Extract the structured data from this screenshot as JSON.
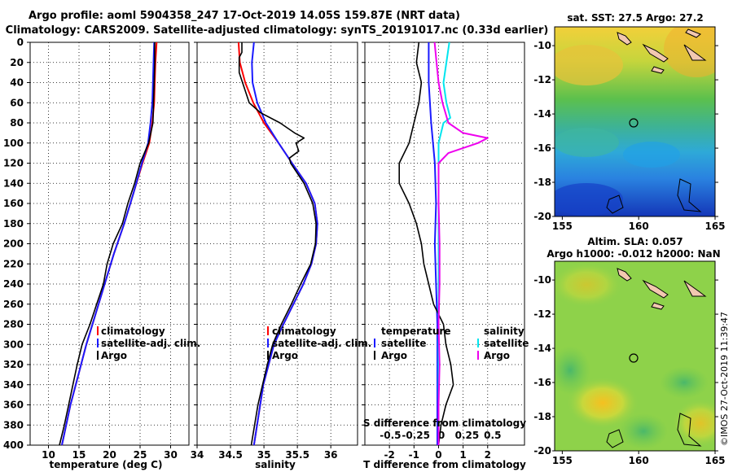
{
  "title_line1": "Argo profile: aoml 5904358_247 17-Oct-2019 14.05S 159.87E (NRT data)",
  "title_line2": "Climatology: CARS2009. Satellite-adjusted climatology: synTS_20191017.nc (0.33d earlier)",
  "credit": "©IMOS 27-Oct-2019 11:39:47",
  "colors": {
    "climatology": "#ff0000",
    "satellite": "#1a1aff",
    "argo": "#000000",
    "sal_satellite": "#00e5ee",
    "sal_clim": "#ee00ee"
  },
  "chart_data": [
    {
      "id": "temperature",
      "type": "line",
      "xlabel": "temperature (deg C)",
      "ylabel": "",
      "xlim": [
        7,
        33
      ],
      "ylim": [
        400,
        0
      ],
      "xticks": [
        "10",
        "15",
        "20",
        "25",
        "30"
      ],
      "yticks": [
        "0",
        "20",
        "40",
        "60",
        "80",
        "100",
        "120",
        "140",
        "160",
        "180",
        "200",
        "220",
        "240",
        "260",
        "280",
        "300",
        "320",
        "340",
        "360",
        "380",
        "400"
      ],
      "grid": true,
      "legend": [
        "climatology",
        "satellite-adj. clim.",
        "Argo"
      ],
      "legend_position": "lower-right",
      "series": [
        {
          "name": "climatology",
          "color": "#ff0000",
          "depth": [
            0,
            20,
            40,
            60,
            80,
            100,
            120,
            150,
            180,
            210,
            240,
            270,
            300,
            330,
            360,
            400
          ],
          "values": [
            27.7,
            27.5,
            27.4,
            27.3,
            27.0,
            26.5,
            25.4,
            23.9,
            22.4,
            20.7,
            19.2,
            17.7,
            16.2,
            14.9,
            13.6,
            12.2
          ]
        },
        {
          "name": "satellite-adj. clim.",
          "color": "#1a1aff",
          "depth": [
            0,
            20,
            40,
            60,
            80,
            100,
            120,
            150,
            180,
            210,
            240,
            270,
            300,
            330,
            360,
            400
          ],
          "values": [
            27.3,
            27.2,
            27.1,
            27.0,
            26.7,
            26.3,
            25.3,
            23.9,
            22.4,
            20.7,
            19.2,
            17.7,
            16.2,
            14.9,
            13.6,
            12.2
          ]
        },
        {
          "name": "Argo",
          "color": "#000000",
          "depth": [
            0,
            20,
            40,
            60,
            80,
            100,
            120,
            140,
            160,
            180,
            200,
            220,
            240,
            260,
            280,
            300,
            320,
            340,
            360,
            380,
            400
          ],
          "values": [
            27.4,
            27.4,
            27.3,
            27.2,
            27.1,
            26.4,
            25.0,
            24.1,
            23.0,
            22.1,
            20.6,
            19.6,
            19.0,
            17.9,
            16.8,
            15.5,
            14.7,
            14.0,
            13.3,
            12.6,
            11.8
          ]
        }
      ]
    },
    {
      "id": "salinity",
      "type": "line",
      "xlabel": "salinity",
      "ylabel": "",
      "xlim": [
        34,
        36.4
      ],
      "ylim": [
        400,
        0
      ],
      "xticks": [
        "34",
        "34.5",
        "35",
        "35.5",
        "36"
      ],
      "grid": true,
      "legend": [
        "climatology",
        "satellite-adj. clim.",
        "Argo"
      ],
      "legend_position": "lower-right",
      "series": [
        {
          "name": "climatology",
          "color": "#ff0000",
          "depth": [
            0,
            20,
            40,
            60,
            80,
            100,
            120,
            140,
            160,
            180,
            200,
            220,
            240,
            260,
            280,
            300,
            340,
            400
          ],
          "values": [
            34.62,
            34.64,
            34.72,
            34.84,
            35.0,
            35.22,
            35.42,
            35.63,
            35.76,
            35.8,
            35.78,
            35.71,
            35.59,
            35.44,
            35.29,
            35.15,
            34.99,
            34.85
          ]
        },
        {
          "name": "satellite-adj. clim.",
          "color": "#1a1aff",
          "depth": [
            0,
            20,
            40,
            60,
            80,
            100,
            120,
            140,
            160,
            180,
            200,
            220,
            240,
            260,
            280,
            300,
            340,
            400
          ],
          "values": [
            34.85,
            34.82,
            34.83,
            34.9,
            35.03,
            35.22,
            35.42,
            35.63,
            35.76,
            35.8,
            35.78,
            35.71,
            35.59,
            35.44,
            35.29,
            35.15,
            34.99,
            34.85
          ]
        },
        {
          "name": "Argo",
          "color": "#000000",
          "depth": [
            0,
            10,
            15,
            30,
            60,
            70,
            80,
            90,
            95,
            100,
            108,
            115,
            120,
            140,
            160,
            180,
            200,
            220,
            240,
            260,
            280,
            300,
            320,
            340,
            360,
            380,
            400
          ],
          "values": [
            34.67,
            34.67,
            34.63,
            34.63,
            34.78,
            34.95,
            35.24,
            35.46,
            35.6,
            35.48,
            35.52,
            35.38,
            35.4,
            35.6,
            35.73,
            35.78,
            35.77,
            35.7,
            35.55,
            35.41,
            35.26,
            35.13,
            35.05,
            34.98,
            34.91,
            34.86,
            34.81
          ]
        }
      ]
    },
    {
      "id": "difference",
      "type": "line",
      "xlabel": "T difference from climatology",
      "xlabel_top": "S difference from climatology",
      "xlim": [
        -3,
        3.5
      ],
      "ylim": [
        400,
        0
      ],
      "xticks": [
        "-2",
        "-1",
        "0",
        "1",
        "2"
      ],
      "xticks_s": [
        "-0.5",
        "-0.25",
        "0",
        "0.25",
        "0.5"
      ],
      "grid": true,
      "legend_left": {
        "title": "temperature",
        "items": [
          "satellite",
          "Argo"
        ]
      },
      "legend_right": {
        "title": "salinity",
        "items": [
          "satellite",
          "Argo"
        ]
      },
      "series": [
        {
          "name": "temperature satellite",
          "color": "#1a1aff",
          "depth": [
            0,
            40,
            80,
            120,
            160,
            200,
            240,
            280,
            320,
            360,
            400
          ],
          "values": [
            -0.4,
            -0.4,
            -0.3,
            -0.15,
            -0.1,
            -0.15,
            -0.1,
            -0.05,
            -0.05,
            -0.05,
            -0.05
          ]
        },
        {
          "name": "temperature Argo",
          "color": "#000000",
          "depth": [
            0,
            20,
            40,
            60,
            80,
            100,
            120,
            140,
            160,
            180,
            200,
            220,
            240,
            260,
            280,
            300,
            320,
            340,
            360,
            380,
            400
          ],
          "values": [
            -0.8,
            -0.9,
            -0.7,
            -0.8,
            -1.0,
            -1.2,
            -1.6,
            -1.6,
            -1.2,
            -0.9,
            -0.7,
            -0.6,
            -0.4,
            -0.2,
            0.2,
            0.3,
            0.5,
            0.6,
            0.3,
            0.1,
            0.0
          ]
        },
        {
          "name": "salinity satellite",
          "color": "#00e5ee",
          "depth": [
            0,
            20,
            40,
            60,
            75,
            80,
            100,
            120,
            140,
            200,
            300,
            400
          ],
          "values": [
            0.11,
            0.08,
            0.05,
            0.08,
            0.12,
            0.05,
            0.0,
            0.0,
            0.0,
            0.0,
            0.0,
            0.0
          ]
        },
        {
          "name": "salinity Argo",
          "color": "#ee00ee",
          "depth": [
            0,
            20,
            40,
            60,
            80,
            90,
            95,
            100,
            110,
            120,
            160,
            200,
            240,
            280,
            320,
            360,
            400
          ],
          "values": [
            -0.04,
            -0.02,
            0.0,
            0.04,
            0.1,
            0.25,
            0.5,
            0.4,
            0.1,
            0.0,
            0.0,
            0.01,
            0.01,
            0.0,
            0.01,
            0.0,
            0.0
          ]
        }
      ]
    }
  ],
  "maps": [
    {
      "id": "sst",
      "title": "sat. SST: 27.5 Argo: 27.2",
      "xticks": [
        "155",
        "160",
        "165"
      ],
      "yticks": [
        "-10",
        "-12",
        "-14",
        "-16",
        "-18",
        "-20"
      ]
    },
    {
      "id": "sla",
      "title_line1": "Altim. SLA: 0.057",
      "title_line2": "Argo h1000: -0.012 h2000: NaN",
      "xticks": [
        "155",
        "160",
        "165"
      ],
      "yticks": [
        "-10",
        "-12",
        "-14",
        "-16",
        "-18",
        "-20"
      ]
    }
  ]
}
